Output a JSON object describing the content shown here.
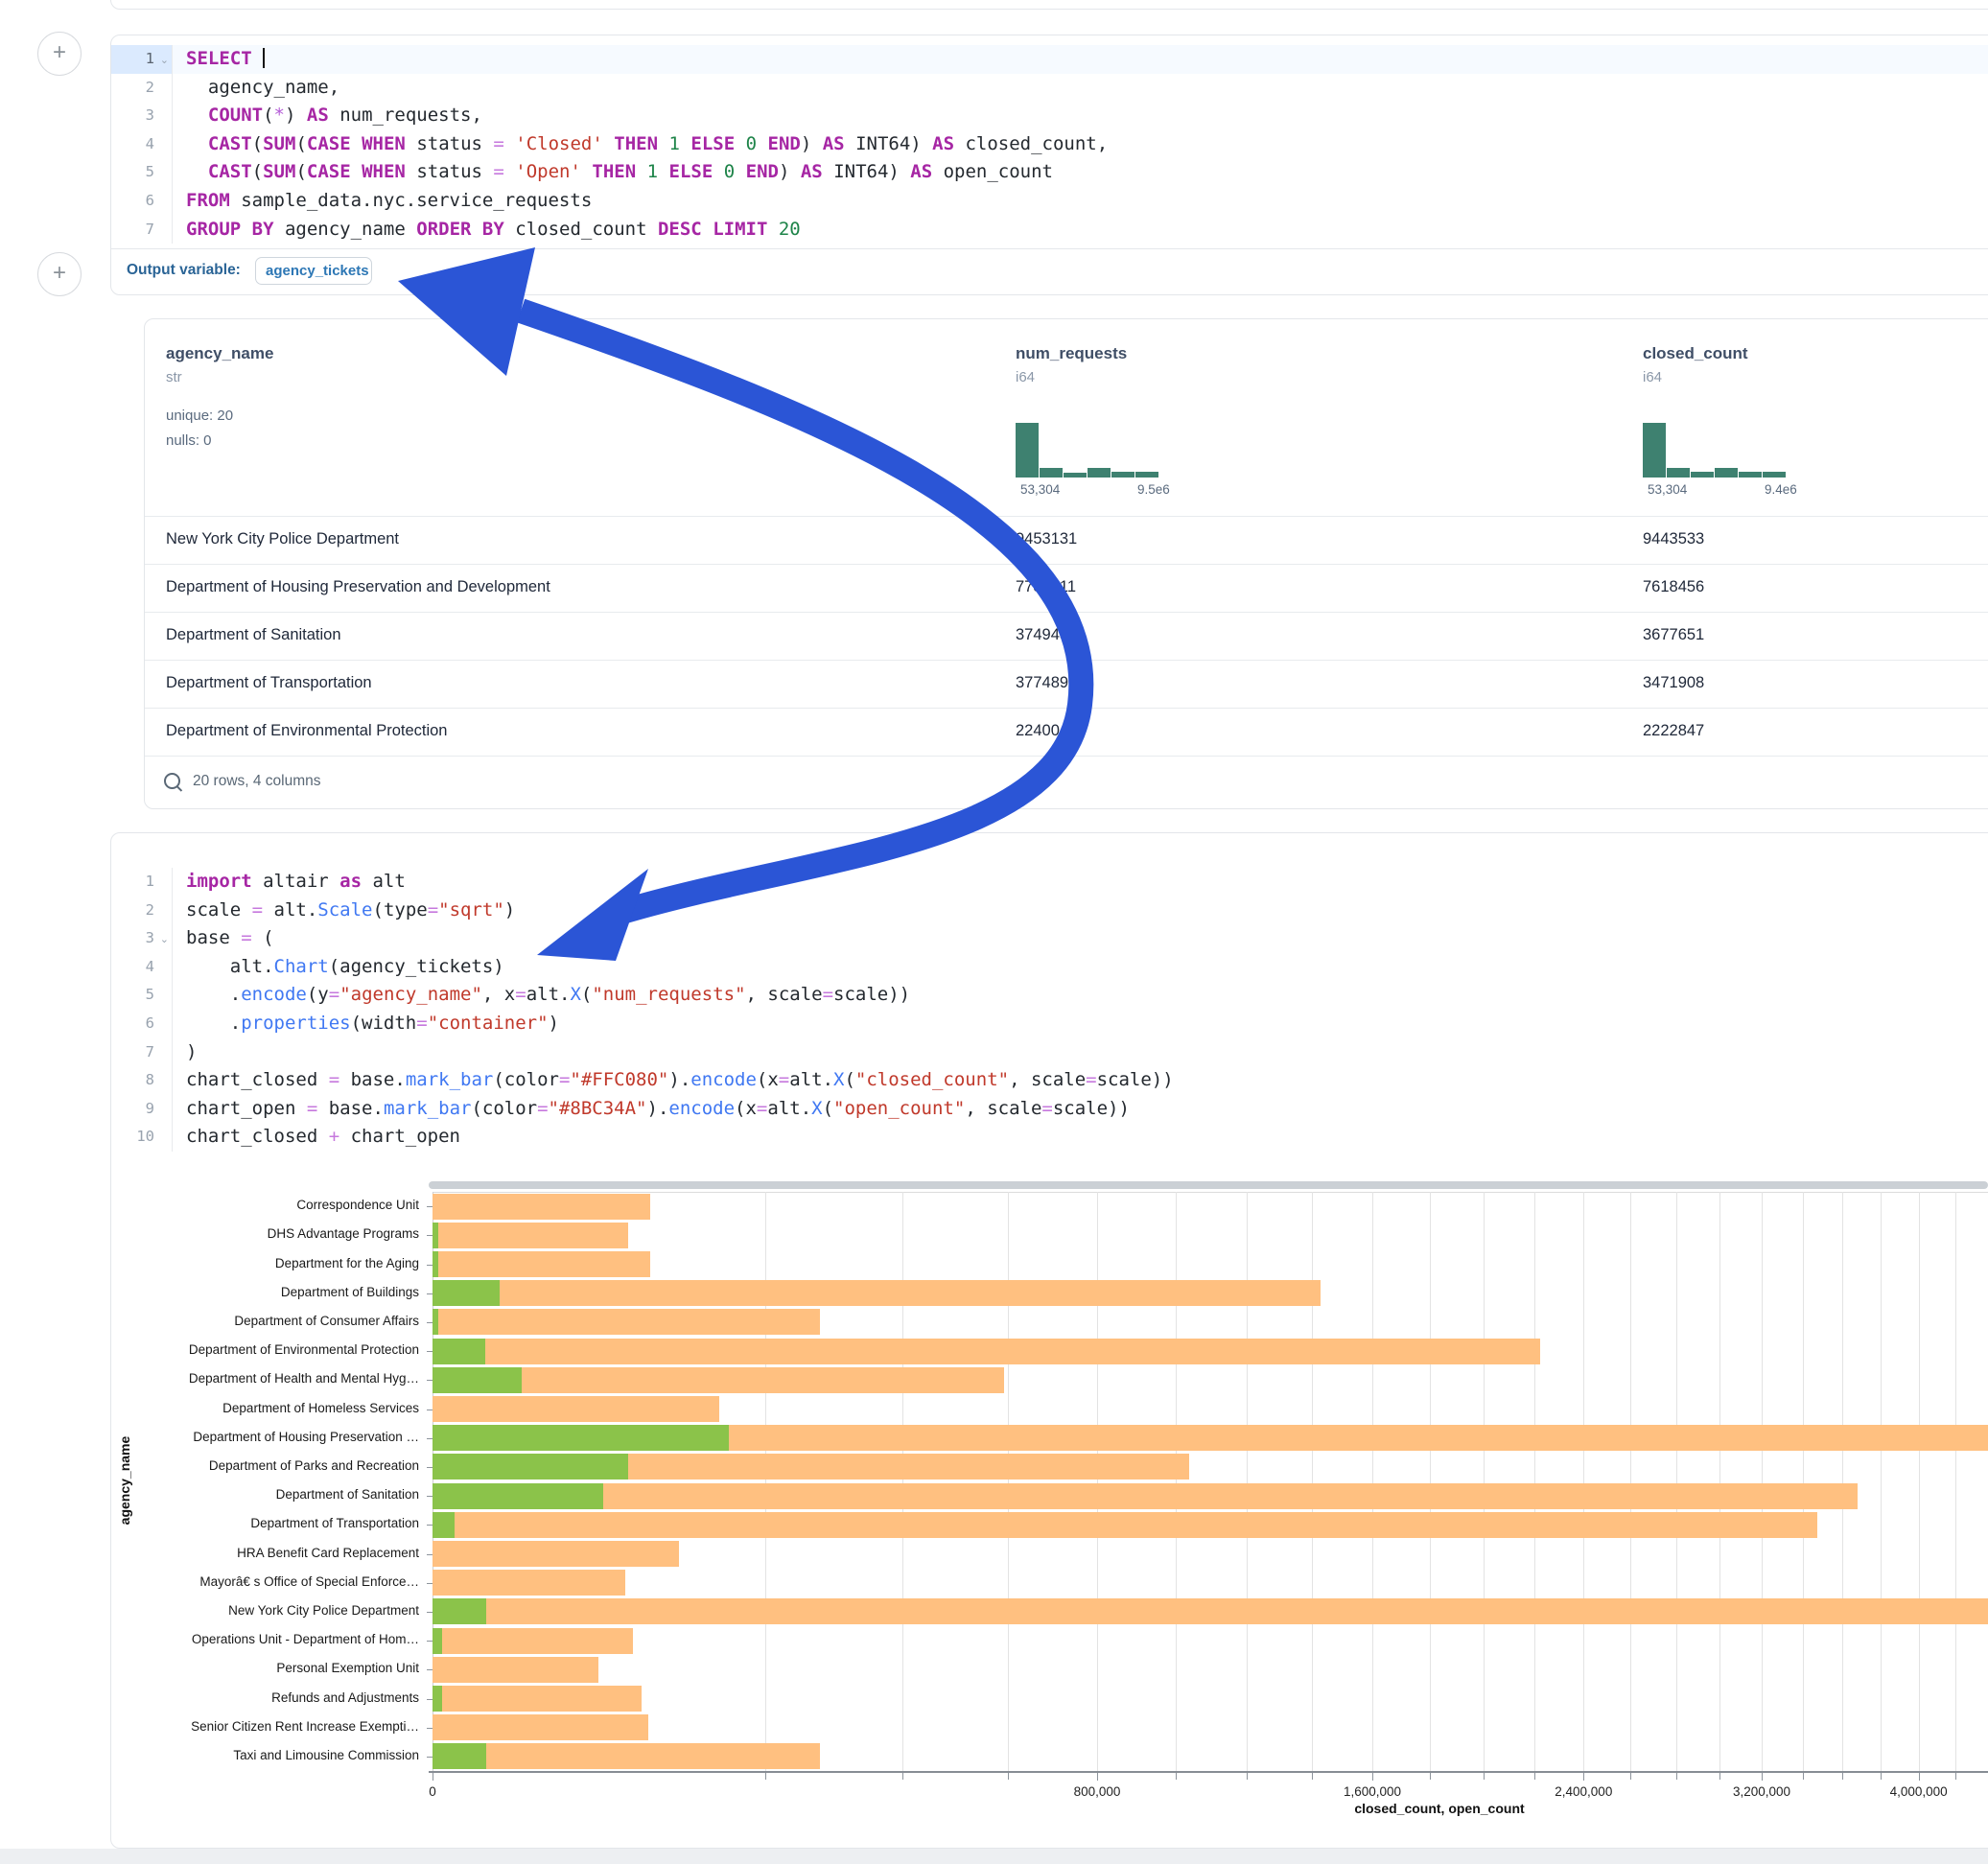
{
  "annotation": {
    "color": "#2B55D6"
  },
  "plus_buttons": {
    "first": "+",
    "second": "+"
  },
  "sql_cell": {
    "footer": {
      "label": "Output variable:",
      "pill": "agency_tickets"
    },
    "lines": [
      {
        "n": 1,
        "active": true,
        "fold": true,
        "cursor": true,
        "tokens": [
          [
            "SELECT ",
            "kw"
          ]
        ]
      },
      {
        "n": 2,
        "tokens": [
          [
            "  agency_name,",
            "txt"
          ]
        ]
      },
      {
        "n": 3,
        "tokens": [
          [
            "  ",
            "txt"
          ],
          [
            "COUNT",
            "kw"
          ],
          [
            "(",
            "txt"
          ],
          [
            "*",
            "star"
          ],
          [
            ") ",
            "txt"
          ],
          [
            "AS",
            "kw"
          ],
          [
            " num_requests,",
            "txt"
          ]
        ]
      },
      {
        "n": 4,
        "tokens": [
          [
            "  ",
            "txt"
          ],
          [
            "CAST",
            "kw"
          ],
          [
            "(",
            "txt"
          ],
          [
            "SUM",
            "kw"
          ],
          [
            "(",
            "txt"
          ],
          [
            "CASE",
            "kw"
          ],
          [
            " ",
            "txt"
          ],
          [
            "WHEN",
            "kw"
          ],
          [
            " status ",
            "txt"
          ],
          [
            "=",
            "op"
          ],
          [
            " ",
            "txt"
          ],
          [
            "'Closed'",
            "str"
          ],
          [
            " ",
            "txt"
          ],
          [
            "THEN",
            "kw"
          ],
          [
            " ",
            "txt"
          ],
          [
            "1",
            "num"
          ],
          [
            " ",
            "txt"
          ],
          [
            "ELSE",
            "kw"
          ],
          [
            " ",
            "txt"
          ],
          [
            "0",
            "num"
          ],
          [
            " ",
            "txt"
          ],
          [
            "END",
            "kw"
          ],
          [
            ") ",
            "txt"
          ],
          [
            "AS",
            "kw"
          ],
          [
            " INT64) ",
            "txt"
          ],
          [
            "AS",
            "kw"
          ],
          [
            " closed_count,",
            "txt"
          ]
        ]
      },
      {
        "n": 5,
        "tokens": [
          [
            "  ",
            "txt"
          ],
          [
            "CAST",
            "kw"
          ],
          [
            "(",
            "txt"
          ],
          [
            "SUM",
            "kw"
          ],
          [
            "(",
            "txt"
          ],
          [
            "CASE",
            "kw"
          ],
          [
            " ",
            "txt"
          ],
          [
            "WHEN",
            "kw"
          ],
          [
            " status ",
            "txt"
          ],
          [
            "=",
            "op"
          ],
          [
            " ",
            "txt"
          ],
          [
            "'Open'",
            "str"
          ],
          [
            " ",
            "txt"
          ],
          [
            "THEN",
            "kw"
          ],
          [
            " ",
            "txt"
          ],
          [
            "1",
            "num"
          ],
          [
            " ",
            "txt"
          ],
          [
            "ELSE",
            "kw"
          ],
          [
            " ",
            "txt"
          ],
          [
            "0",
            "num"
          ],
          [
            " ",
            "txt"
          ],
          [
            "END",
            "kw"
          ],
          [
            ") ",
            "txt"
          ],
          [
            "AS",
            "kw"
          ],
          [
            " INT64) ",
            "txt"
          ],
          [
            "AS",
            "kw"
          ],
          [
            " open_count",
            "txt"
          ]
        ]
      },
      {
        "n": 6,
        "tokens": [
          [
            "FROM",
            "kw"
          ],
          [
            " sample_data.nyc.service_requests",
            "txt"
          ]
        ]
      },
      {
        "n": 7,
        "tokens": [
          [
            "GROUP",
            "kw"
          ],
          [
            " ",
            "txt"
          ],
          [
            "BY",
            "kw"
          ],
          [
            " agency_name ",
            "txt"
          ],
          [
            "ORDER",
            "kw"
          ],
          [
            " ",
            "txt"
          ],
          [
            "BY",
            "kw"
          ],
          [
            " closed_count ",
            "txt"
          ],
          [
            "DESC",
            "kw"
          ],
          [
            " ",
            "txt"
          ],
          [
            "LIMIT",
            "kw"
          ],
          [
            " ",
            "txt"
          ],
          [
            "20",
            "num"
          ]
        ]
      }
    ]
  },
  "table": {
    "columns": [
      {
        "name": "agency_name",
        "type": "str",
        "stats": [
          "unique: 20",
          "nulls: 0"
        ]
      },
      {
        "name": "num_requests",
        "type": "i64",
        "hist": {
          "bars": [
            57,
            10,
            5,
            10,
            6,
            6
          ],
          "min": "53,304",
          "max": "9.5e6"
        }
      },
      {
        "name": "closed_count",
        "type": "i64",
        "hist": {
          "bars": [
            57,
            10,
            6,
            10,
            6,
            6
          ],
          "min": "53,304",
          "max": "9.4e6"
        }
      }
    ],
    "rows": [
      [
        "New York City Police Department",
        "9453131",
        "9443533"
      ],
      [
        "Department of Housing Preservation and Development",
        "7782211",
        "7618456"
      ],
      [
        "Department of Sanitation",
        "3749485",
        "3677651"
      ],
      [
        "Department of Transportation",
        "3774892",
        "3471908"
      ],
      [
        "Department of Environmental Protection",
        "2240041",
        "2222847"
      ]
    ],
    "summary": "20 rows, 4 columns"
  },
  "py_cell": {
    "lines": [
      {
        "n": 1,
        "tokens": [
          [
            "import",
            "kw"
          ],
          [
            " altair ",
            "txt"
          ],
          [
            "as",
            "kw"
          ],
          [
            " alt",
            "txt"
          ]
        ]
      },
      {
        "n": 2,
        "tokens": [
          [
            "scale ",
            "txt"
          ],
          [
            "=",
            "op"
          ],
          [
            " alt.",
            "txt"
          ],
          [
            "Scale",
            "fn"
          ],
          [
            "(type",
            "txt"
          ],
          [
            "=",
            "op"
          ],
          [
            "\"sqrt\"",
            "str"
          ],
          [
            ")",
            "txt"
          ]
        ]
      },
      {
        "n": 3,
        "fold": true,
        "tokens": [
          [
            "base ",
            "txt"
          ],
          [
            "=",
            "op"
          ],
          [
            " (",
            "txt"
          ]
        ]
      },
      {
        "n": 4,
        "tokens": [
          [
            "    alt.",
            "txt"
          ],
          [
            "Chart",
            "fn"
          ],
          [
            "(agency_tickets)",
            "txt"
          ]
        ]
      },
      {
        "n": 5,
        "tokens": [
          [
            "    .",
            "txt"
          ],
          [
            "encode",
            "fn"
          ],
          [
            "(y",
            "txt"
          ],
          [
            "=",
            "op"
          ],
          [
            "\"agency_name\"",
            "str"
          ],
          [
            ", x",
            "txt"
          ],
          [
            "=",
            "op"
          ],
          [
            "alt.",
            "txt"
          ],
          [
            "X",
            "fn"
          ],
          [
            "(",
            "txt"
          ],
          [
            "\"num_requests\"",
            "str"
          ],
          [
            ", scale",
            "txt"
          ],
          [
            "=",
            "op"
          ],
          [
            "scale))",
            "txt"
          ]
        ]
      },
      {
        "n": 6,
        "tokens": [
          [
            "    .",
            "txt"
          ],
          [
            "properties",
            "fn"
          ],
          [
            "(width",
            "txt"
          ],
          [
            "=",
            "op"
          ],
          [
            "\"container\"",
            "str"
          ],
          [
            ")",
            "txt"
          ]
        ]
      },
      {
        "n": 7,
        "tokens": [
          [
            ")",
            "txt"
          ]
        ]
      },
      {
        "n": 8,
        "tokens": [
          [
            "chart_closed ",
            "txt"
          ],
          [
            "=",
            "op"
          ],
          [
            " base.",
            "txt"
          ],
          [
            "mark_bar",
            "fn"
          ],
          [
            "(color",
            "txt"
          ],
          [
            "=",
            "op"
          ],
          [
            "\"#FFC080\"",
            "str"
          ],
          [
            ").",
            "txt"
          ],
          [
            "encode",
            "fn"
          ],
          [
            "(x",
            "txt"
          ],
          [
            "=",
            "op"
          ],
          [
            "alt.",
            "txt"
          ],
          [
            "X",
            "fn"
          ],
          [
            "(",
            "txt"
          ],
          [
            "\"closed_count\"",
            "str"
          ],
          [
            ", scale",
            "txt"
          ],
          [
            "=",
            "op"
          ],
          [
            "scale))",
            "txt"
          ]
        ]
      },
      {
        "n": 9,
        "tokens": [
          [
            "chart_open ",
            "txt"
          ],
          [
            "=",
            "op"
          ],
          [
            " base.",
            "txt"
          ],
          [
            "mark_bar",
            "fn"
          ],
          [
            "(color",
            "txt"
          ],
          [
            "=",
            "op"
          ],
          [
            "\"#8BC34A\"",
            "str"
          ],
          [
            ").",
            "txt"
          ],
          [
            "encode",
            "fn"
          ],
          [
            "(x",
            "txt"
          ],
          [
            "=",
            "op"
          ],
          [
            "alt.",
            "txt"
          ],
          [
            "X",
            "fn"
          ],
          [
            "(",
            "txt"
          ],
          [
            "\"open_count\"",
            "str"
          ],
          [
            ", scale",
            "txt"
          ],
          [
            "=",
            "op"
          ],
          [
            "scale))",
            "txt"
          ]
        ]
      },
      {
        "n": 10,
        "tokens": [
          [
            "chart_closed ",
            "txt"
          ],
          [
            "+",
            "op"
          ],
          [
            " chart_open",
            "txt"
          ]
        ]
      }
    ]
  },
  "chart_data": {
    "type": "bar",
    "orientation": "horizontal",
    "scale": "sqrt",
    "categories": [
      "Correspondence Unit",
      "DHS Advantage Programs",
      "Department for the Aging",
      "Department of Buildings",
      "Department of Consumer Affairs",
      "Department of Environmental Protection",
      "Department of Health and Mental Hyg…",
      "Department of Homeless Services",
      "Department of Housing Preservation …",
      "Department of Parks and Recreation",
      "Department of Sanitation",
      "Department of Transportation",
      "HRA Benefit Card Replacement",
      "Mayorâ€ s Office of Special Enforce…",
      "New York City Police Department",
      "Operations Unit - Department of Hom…",
      "Personal Exemption Unit",
      "Refunds and Adjustments",
      "Senior Citizen Rent Increase Exempti…",
      "Taxi and Limousine Commission"
    ],
    "series": [
      {
        "name": "closed_count",
        "color": "#FFC080",
        "values": [
          86000,
          69000,
          86000,
          1428000,
          272000,
          2222847,
          591000,
          149000,
          7618456,
          1036000,
          3677651,
          3471908,
          110000,
          67000,
          9443533,
          73000,
          50000,
          79000,
          84000,
          272000
        ]
      },
      {
        "name": "open_count",
        "color": "#8BC34A",
        "values": [
          0,
          50,
          60,
          8200,
          60,
          5000,
          14400,
          0,
          159000,
          69000,
          53000,
          900,
          0,
          0,
          5200,
          150,
          0,
          170,
          0,
          5200
        ]
      }
    ],
    "xlabel": "closed_count, open_count",
    "ylabel": "agency_name",
    "x_ticks": [
      {
        "v": 0,
        "label": "0"
      },
      {
        "v": 800000,
        "label": "800,000"
      },
      {
        "v": 1600000,
        "label": "1,600,000"
      },
      {
        "v": 2400000,
        "label": "2,400,000"
      },
      {
        "v": 3200000,
        "label": "3,200,000"
      },
      {
        "v": 4000000,
        "label": "4,000,000"
      }
    ],
    "gridline_step": 200000,
    "x_visible_max": 4940000,
    "grid": true,
    "legend": "none"
  }
}
